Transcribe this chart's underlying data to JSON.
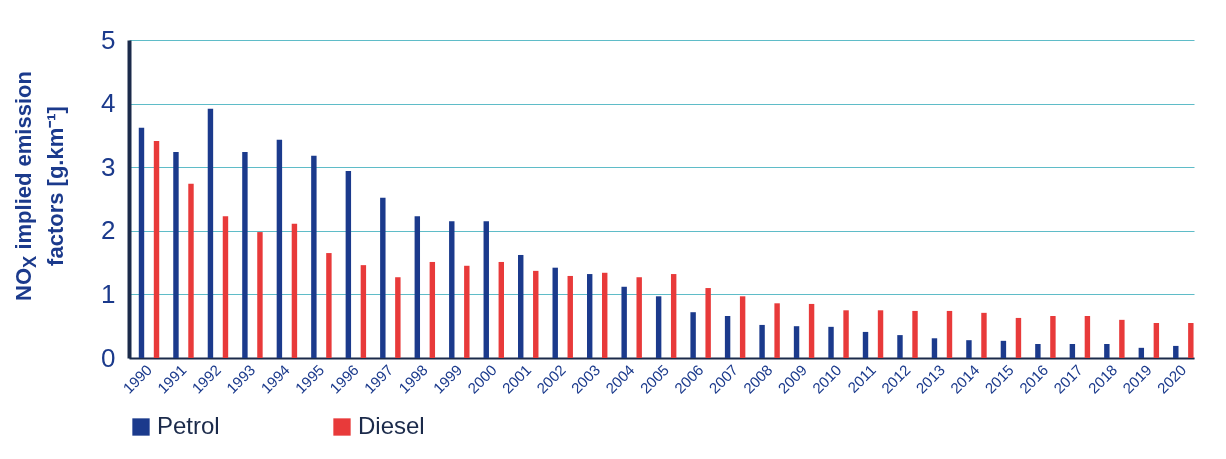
{
  "chart_data": {
    "type": "bar",
    "ylabel": "NO$_{X}$ implied emission factors [g.km⁻¹]",
    "categories": [
      "1990",
      "1991",
      "1992",
      "1993",
      "1994",
      "1995",
      "1996",
      "1997",
      "1998",
      "1999",
      "2000",
      "2001",
      "2002",
      "2003",
      "2004",
      "2005",
      "2006",
      "2007",
      "2008",
      "2009",
      "2010",
      "2011",
      "2012",
      "2013",
      "2014",
      "2015",
      "2016",
      "2017",
      "2018",
      "2019",
      "2020"
    ],
    "series": [
      {
        "name": "Petrol",
        "color": "#1b3a8c",
        "values": [
          3.62,
          3.24,
          3.92,
          3.24,
          3.43,
          3.18,
          2.94,
          2.52,
          2.23,
          2.15,
          2.15,
          1.62,
          1.42,
          1.32,
          1.12,
          0.97,
          0.72,
          0.66,
          0.52,
          0.5,
          0.49,
          0.41,
          0.36,
          0.31,
          0.28,
          0.27,
          0.22,
          0.22,
          0.22,
          0.16,
          0.19
        ]
      },
      {
        "name": "Diesel",
        "color": "#e83a3a",
        "values": [
          3.41,
          2.74,
          2.23,
          1.98,
          2.11,
          1.65,
          1.46,
          1.27,
          1.51,
          1.45,
          1.51,
          1.37,
          1.29,
          1.34,
          1.27,
          1.32,
          1.1,
          0.97,
          0.86,
          0.85,
          0.75,
          0.75,
          0.74,
          0.74,
          0.71,
          0.63,
          0.66,
          0.66,
          0.6,
          0.55,
          0.55
        ]
      }
    ],
    "ylim": [
      0,
      5
    ],
    "yticks": [
      0,
      1,
      2,
      3,
      4,
      5
    ],
    "grid": "y",
    "legend": "bottom"
  }
}
